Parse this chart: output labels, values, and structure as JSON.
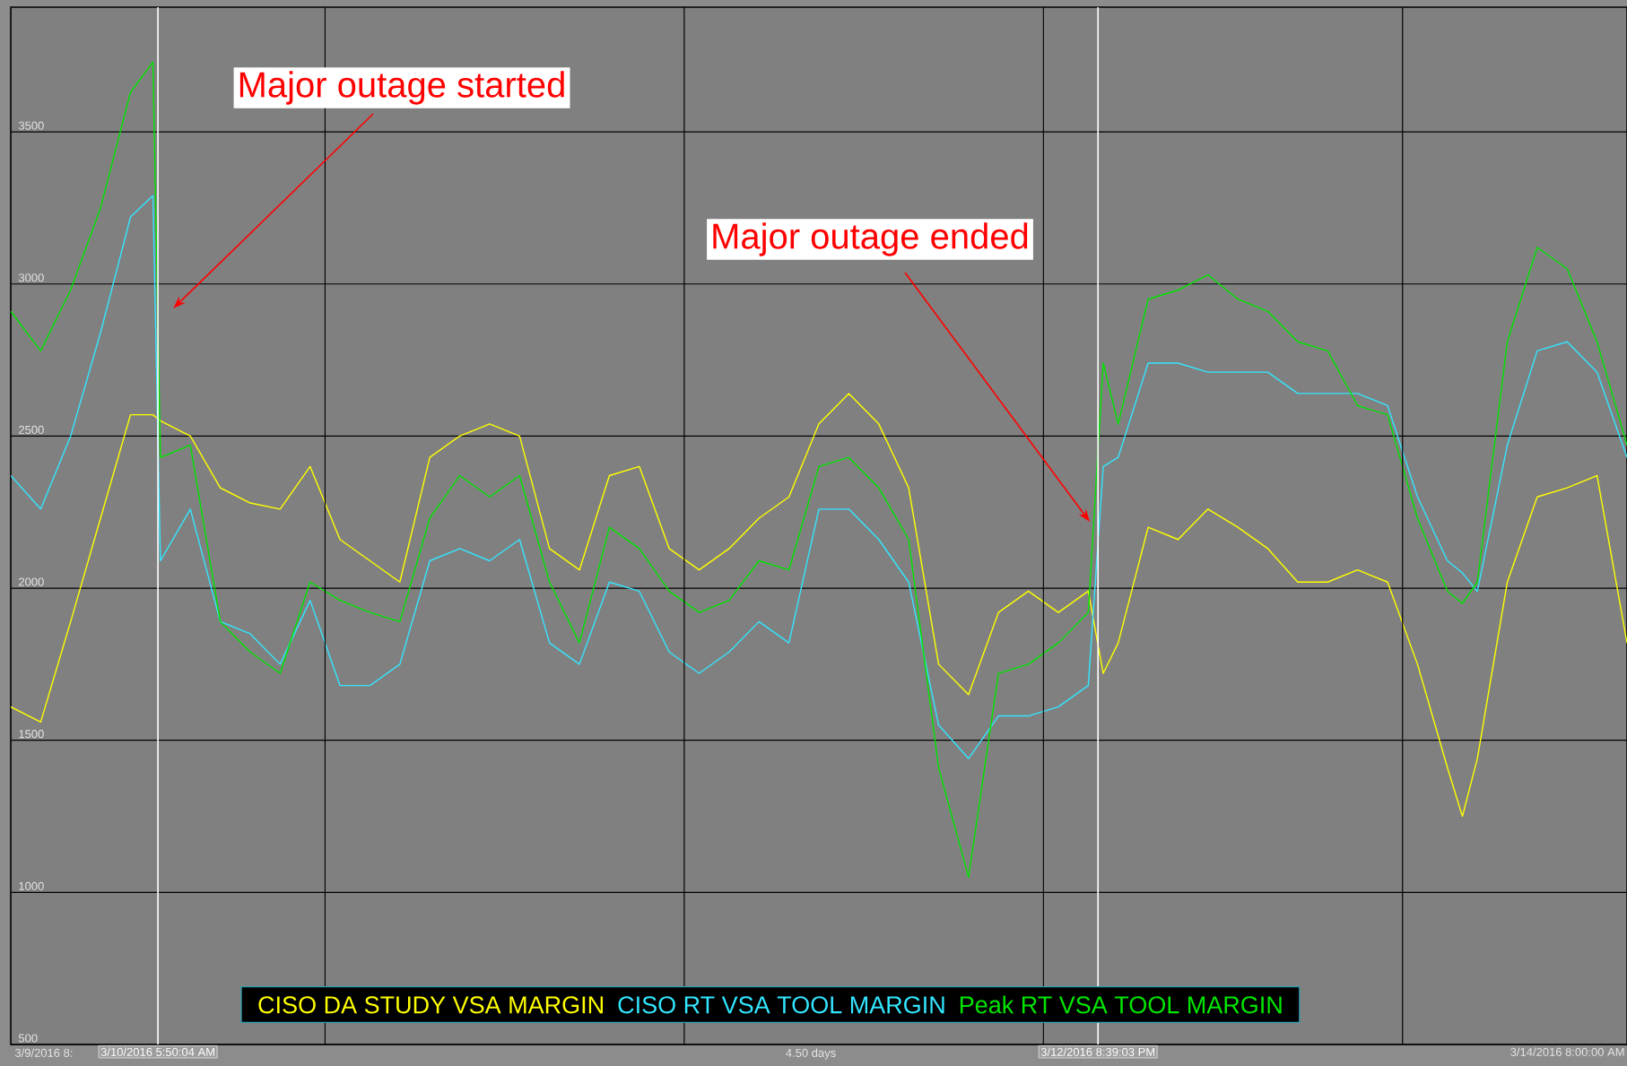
{
  "chart_data": {
    "type": "line",
    "x": [
      "2016-03-09T20:00",
      "2016-03-09T22:00",
      "2016-03-10T00:00",
      "2016-03-10T02:00",
      "2016-03-10T04:00",
      "2016-03-10T05:30",
      "2016-03-10T06:00",
      "2016-03-10T08:00",
      "2016-03-10T10:00",
      "2016-03-10T12:00",
      "2016-03-10T14:00",
      "2016-03-10T16:00",
      "2016-03-10T18:00",
      "2016-03-10T20:00",
      "2016-03-10T22:00",
      "2016-03-11T00:00",
      "2016-03-11T02:00",
      "2016-03-11T04:00",
      "2016-03-11T06:00",
      "2016-03-11T08:00",
      "2016-03-11T10:00",
      "2016-03-11T12:00",
      "2016-03-11T14:00",
      "2016-03-11T16:00",
      "2016-03-11T18:00",
      "2016-03-11T20:00",
      "2016-03-11T22:00",
      "2016-03-12T00:00",
      "2016-03-12T02:00",
      "2016-03-12T04:00",
      "2016-03-12T06:00",
      "2016-03-12T08:00",
      "2016-03-12T10:00",
      "2016-03-12T12:00",
      "2016-03-12T14:00",
      "2016-03-12T16:00",
      "2016-03-12T18:00",
      "2016-03-12T20:00",
      "2016-03-12T21:00",
      "2016-03-12T22:00",
      "2016-03-13T00:00",
      "2016-03-13T02:00",
      "2016-03-13T04:00",
      "2016-03-13T06:00",
      "2016-03-13T08:00",
      "2016-03-13T10:00",
      "2016-03-13T12:00",
      "2016-03-13T14:00",
      "2016-03-13T16:00",
      "2016-03-13T18:00",
      "2016-03-13T20:00",
      "2016-03-13T21:00",
      "2016-03-13T22:00",
      "2016-03-14T00:00",
      "2016-03-14T02:00",
      "2016-03-14T04:00",
      "2016-03-14T06:00",
      "2016-03-14T08:00"
    ],
    "series": [
      {
        "name": "CISO DA STUDY VSA MARGIN",
        "color": "#ffff00",
        "values": [
          1610,
          1560,
          1890,
          2230,
          2570,
          2570,
          2550,
          2500,
          2330,
          2280,
          2260,
          2400,
          2160,
          2090,
          2020,
          2430,
          2500,
          2540,
          2500,
          2130,
          2060,
          2370,
          2400,
          2130,
          2060,
          2130,
          2230,
          2300,
          2540,
          2640,
          2540,
          2330,
          1750,
          1650,
          1920,
          1990,
          1920,
          1990,
          1720,
          1820,
          2200,
          2160,
          2260,
          2200,
          2130,
          2020,
          2020,
          2060,
          2020,
          1750,
          1410,
          1250,
          1440,
          2020,
          2300,
          2330,
          2370,
          1820
        ]
      },
      {
        "name": "CISO RT VSA TOOL MARGIN",
        "color": "#33e6ff",
        "values": [
          2370,
          2260,
          2500,
          2840,
          3220,
          3290,
          2090,
          2260,
          1890,
          1850,
          1750,
          1960,
          1680,
          1680,
          1750,
          2090,
          2130,
          2090,
          2160,
          1820,
          1750,
          2020,
          1990,
          1790,
          1720,
          1790,
          1890,
          1820,
          2260,
          2260,
          2160,
          2020,
          1550,
          1440,
          1580,
          1580,
          1610,
          1680,
          2400,
          2430,
          2740,
          2740,
          2710,
          2710,
          2710,
          2640,
          2640,
          2640,
          2600,
          2300,
          2090,
          2050,
          1990,
          2470,
          2780,
          2810,
          2710,
          2430
        ]
      },
      {
        "name": "Peak RT VSA TOOL MARGIN",
        "color": "#00e600",
        "values": [
          2910,
          2780,
          2980,
          3250,
          3630,
          3730,
          2430,
          2470,
          1890,
          1790,
          1720,
          2020,
          1960,
          1920,
          1890,
          2230,
          2370,
          2300,
          2370,
          2020,
          1820,
          2200,
          2130,
          1990,
          1920,
          1960,
          2090,
          2060,
          2400,
          2430,
          2330,
          2160,
          1410,
          1050,
          1720,
          1750,
          1820,
          1920,
          2740,
          2540,
          2950,
          2980,
          3030,
          2950,
          2910,
          2810,
          2780,
          2600,
          2570,
          2230,
          1990,
          1950,
          2020,
          2810,
          3120,
          3050,
          2810,
          2470
        ]
      }
    ],
    "xlim": [
      "2016-03-09T20:00",
      "2016-03-14T08:00"
    ],
    "xticks": [
      {
        "value": "2016-03-10T05:50:04",
        "label": "3/10/2016 5:50:04 AM"
      },
      {
        "value": "2016-03-10T17:00",
        "label": null
      },
      {
        "value": "2016-03-12T20:39:03",
        "label": "3/12/2016 8:39:03 PM"
      },
      {
        "value": "2016-03-11T17:00",
        "label": null
      },
      {
        "value": "2016-03-12T17:00",
        "label": null
      },
      {
        "value": "2016-03-13T17:00",
        "label": null
      },
      {
        "value": "2016-03-14T08:00",
        "label": "3/14/2016 8:00:00 AM"
      }
    ],
    "ylim": [
      500,
      3910
    ],
    "yticks": [
      500,
      1000,
      1500,
      2000,
      2500,
      3000,
      3500
    ],
    "grid": true,
    "legend": "bottom",
    "annotations": [
      "Major outage started",
      "Major outage ended",
      "4.50 days",
      "3/9/2016 8:"
    ]
  }
}
